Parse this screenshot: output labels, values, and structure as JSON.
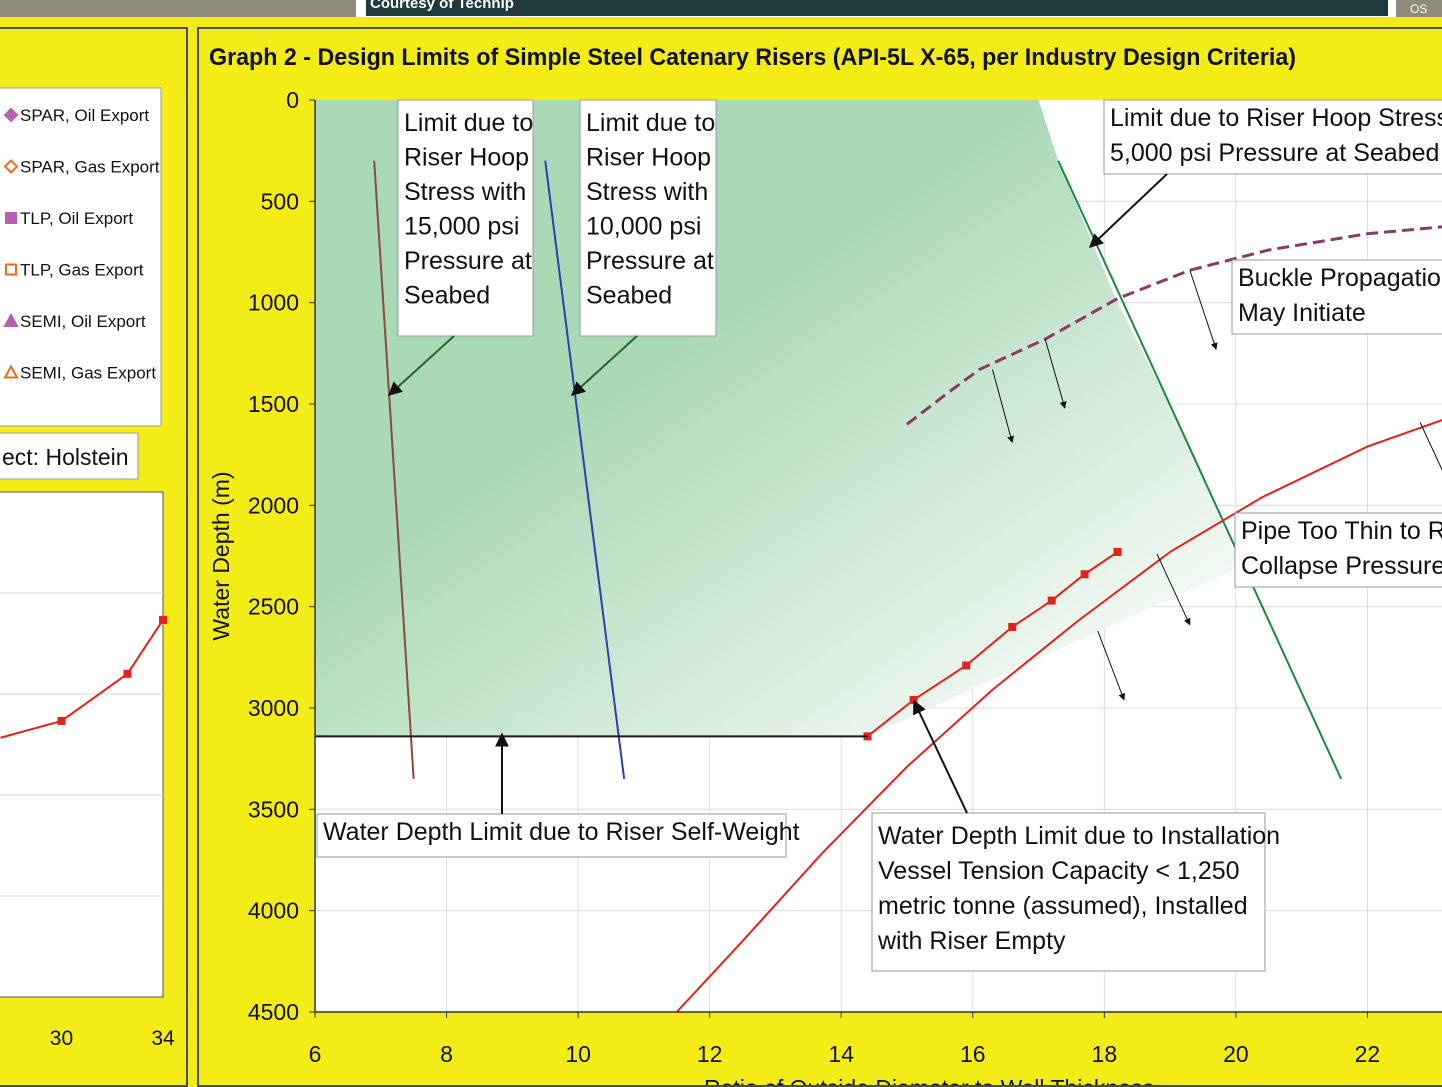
{
  "header": {
    "credit": "Courtesy of Technip",
    "tag": "OS"
  },
  "chart_data": [
    {
      "type": "line",
      "title": "",
      "xlabel": "",
      "ylabel": "",
      "x_ticks": [
        "30",
        "34"
      ],
      "xlim": [
        27.5,
        34
      ],
      "legend": {
        "placement": "top-right",
        "entries": [
          {
            "label": "SPAR, Oil Export",
            "marker": "diamond-filled",
            "color": "#b85fb0"
          },
          {
            "label": "SPAR, Gas Export",
            "marker": "diamond-open",
            "color": "#ee6a1f"
          },
          {
            "label": "TLP, Oil Export",
            "marker": "square-filled",
            "color": "#b85fb0"
          },
          {
            "label": "TLP, Gas Export",
            "marker": "square-open",
            "color": "#ee6a1f"
          },
          {
            "label": "SEMI, Oil Export",
            "marker": "triangle-filled",
            "color": "#b85fb0"
          },
          {
            "label": "SEMI, Gas Export",
            "marker": "triangle-open",
            "color": "#ee6a1f"
          }
        ]
      },
      "annotation": "ect: Holstein",
      "series": [
        {
          "x": [
            27.6,
            30,
            32.6,
            34
          ],
          "y": [
            1230,
            1180,
            1040,
            880
          ],
          "color": "#e5211c"
        }
      ]
    },
    {
      "type": "line",
      "title": "Graph 2 - Design Limits of Simple Steel Catenary Risers (API-5L X-65, per Industry Design Criteria)",
      "xlabel": "Ratio of Outside Diameter to Wall Thickness",
      "ylabel": "Water Depth (m)",
      "xlim": [
        6,
        24
      ],
      "ylim": [
        0,
        4500
      ],
      "y_inverted": true,
      "grid": true,
      "x_ticks": [
        "6",
        "8",
        "10",
        "12",
        "14",
        "16",
        "18",
        "20",
        "22"
      ],
      "y_ticks": [
        "0",
        "500",
        "1000",
        "1500",
        "2000",
        "2500",
        "3000",
        "3500",
        "4000",
        "4500"
      ],
      "series": [
        {
          "name": "15,000 psi hoop stress limit",
          "color": "#8b4a3a",
          "x": [
            6.9,
            7.5
          ],
          "y": [
            300,
            3350
          ]
        },
        {
          "name": "10,000 psi hoop stress limit",
          "color": "#2b3fae",
          "x": [
            9.5,
            10.7
          ],
          "y": [
            300,
            3350
          ]
        },
        {
          "name": "5,000 psi hoop stress limit",
          "color": "#1a8a3e",
          "x": [
            17.3,
            21.6
          ],
          "y": [
            300,
            3350
          ]
        },
        {
          "name": "Buckle propagation",
          "color": "#8a3a6a",
          "dashed": true,
          "x": [
            15,
            15.6,
            16.1,
            17.1,
            18.2,
            19.3,
            20.5,
            22,
            24
          ],
          "y": [
            1600,
            1450,
            1330,
            1180,
            980,
            840,
            740,
            660,
            600
          ]
        },
        {
          "name": "Collapse",
          "color": "#e5211c",
          "x": [
            11.5,
            12.5,
            13.7,
            15,
            16.3,
            17.6,
            19,
            20.4,
            22,
            24
          ],
          "y": [
            4500,
            4150,
            3720,
            3290,
            2910,
            2570,
            2230,
            1960,
            1710,
            1480
          ]
        },
        {
          "name": "Installation vessel tension limit",
          "color": "#e5211c",
          "markers": true,
          "x": [
            14.4,
            15.1,
            15.9,
            16.6,
            17.2,
            17.7,
            18.2
          ],
          "y": [
            3140,
            2960,
            2790,
            2600,
            2470,
            2340,
            2230
          ]
        },
        {
          "name": "Self-weight depth limit",
          "color": "#1a1a1a",
          "x": [
            6,
            14.4
          ],
          "y": [
            3140,
            3140
          ]
        }
      ],
      "annotations": [
        {
          "id": "hoop15",
          "lines": [
            "Limit due to",
            "Riser Hoop",
            "Stress with",
            "15,000 psi",
            "Pressure at",
            "Seabed"
          ]
        },
        {
          "id": "hoop10",
          "lines": [
            "Limit due to",
            "Riser Hoop",
            "Stress with",
            "10,000 psi",
            "Pressure at",
            "Seabed"
          ]
        },
        {
          "id": "hoop5",
          "lines": [
            "Limit due to Riser Hoop Stress w",
            "5,000 psi Pressure at Seabed"
          ]
        },
        {
          "id": "buckle",
          "lines": [
            "Buckle Propagation",
            "May Initiate"
          ]
        },
        {
          "id": "collapse",
          "lines": [
            "Pipe Too Thin to Re",
            "Collapse Pressure"
          ]
        },
        {
          "id": "selfweight",
          "lines": [
            "Water Depth Limit due to Riser Self-Weight"
          ]
        },
        {
          "id": "install",
          "lines": [
            "Water Depth Limit due to Installation",
            "Vessel Tension Capacity < 1,250",
            "metric tonne (assumed), Installed",
            "with Riser Empty"
          ]
        }
      ]
    }
  ]
}
